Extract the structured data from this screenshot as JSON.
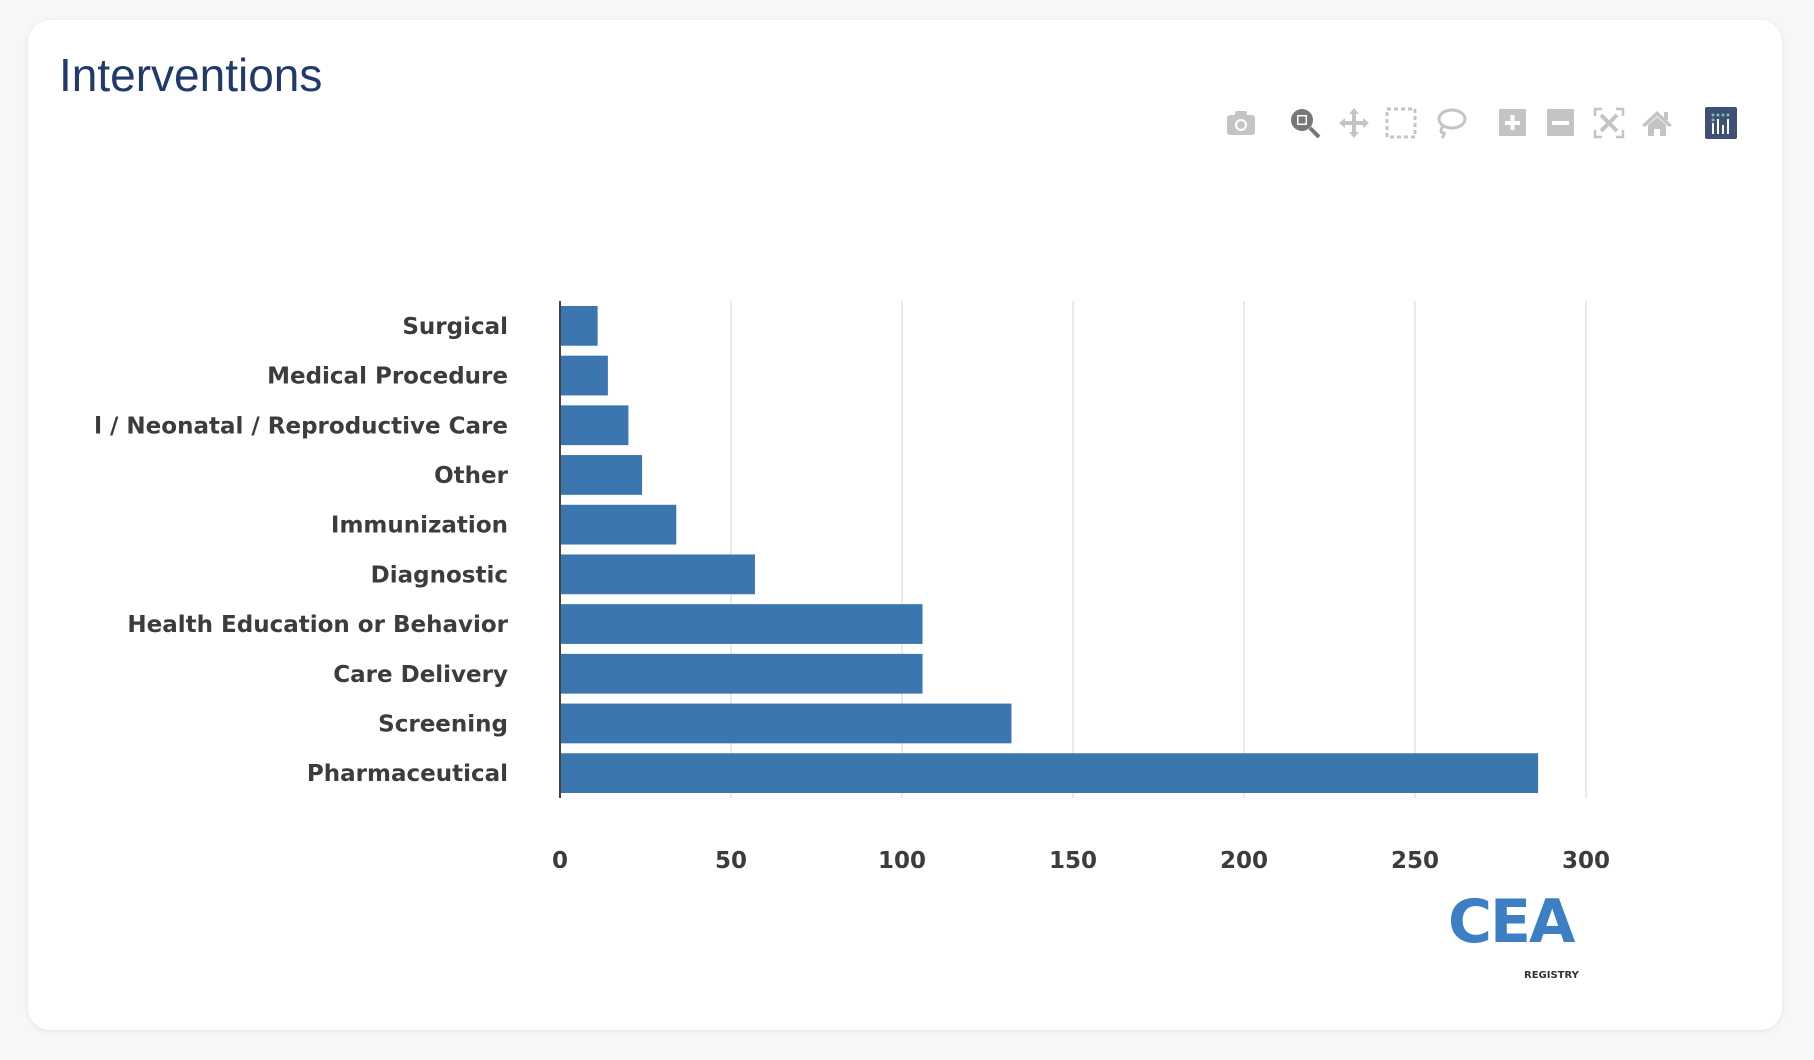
{
  "title": "Interventions",
  "toolbar": {
    "icons": [
      "camera-icon",
      "zoom-icon",
      "pan-icon",
      "box-select-icon",
      "lasso-select-icon",
      "zoom-in-icon",
      "zoom-out-icon",
      "autoscale-icon",
      "reset-axes-icon",
      "plotly-logo-icon"
    ],
    "active": "zoom-icon"
  },
  "logo": {
    "text": "CEA",
    "subtext": "REGISTRY"
  },
  "colors": {
    "bar": "#3b76ae",
    "title": "#1f3a6b",
    "grid": "#ebebeb",
    "axis": "#444444"
  },
  "chart_data": {
    "type": "bar",
    "orientation": "horizontal",
    "categories": [
      "Surgical",
      "Medical Procedure",
      "l / Neonatal / Reproductive Care",
      "Other",
      "Immunization",
      "Diagnostic",
      "Health Education or Behavior",
      "Care Delivery",
      "Screening",
      "Pharmaceutical"
    ],
    "values": [
      11,
      14,
      20,
      24,
      34,
      57,
      106,
      106,
      132,
      286
    ],
    "xlim": [
      0,
      300
    ],
    "xticks": [
      0,
      50,
      100,
      150,
      200,
      250,
      300
    ],
    "grid": true,
    "title": "Interventions",
    "xlabel": "",
    "ylabel": ""
  }
}
